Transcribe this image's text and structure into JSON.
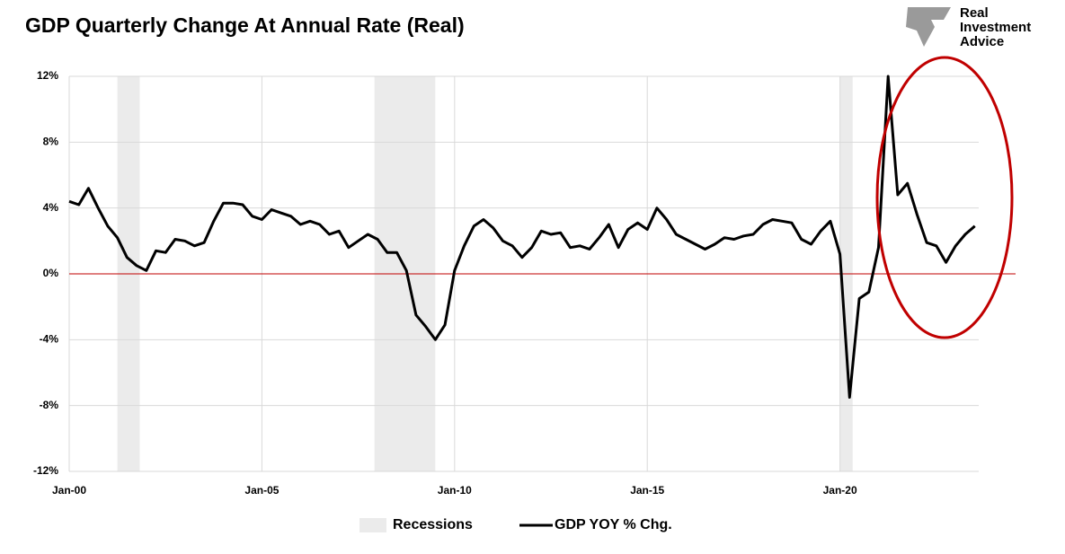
{
  "chart_data": {
    "type": "line",
    "title": "GDP Quarterly Change At Annual Rate (Real)",
    "logo": [
      "Real",
      "Investment",
      "Advice"
    ],
    "x": [
      2000,
      2000.25,
      2000.5,
      2000.75,
      2001,
      2001.25,
      2001.5,
      2001.75,
      2002,
      2002.25,
      2002.5,
      2002.75,
      2003,
      2003.25,
      2003.5,
      2003.75,
      2004,
      2004.25,
      2004.5,
      2004.75,
      2005,
      2005.25,
      2005.5,
      2005.75,
      2006,
      2006.25,
      2006.5,
      2006.75,
      2007,
      2007.25,
      2007.5,
      2007.75,
      2008,
      2008.25,
      2008.5,
      2008.75,
      2009,
      2009.25,
      2009.5,
      2009.75,
      2010,
      2010.25,
      2010.5,
      2010.75,
      2011,
      2011.25,
      2011.5,
      2011.75,
      2012,
      2012.25,
      2012.5,
      2012.75,
      2013,
      2013.25,
      2013.5,
      2013.75,
      2014,
      2014.25,
      2014.5,
      2014.75,
      2015,
      2015.25,
      2015.5,
      2015.75,
      2016,
      2016.25,
      2016.5,
      2016.75,
      2017,
      2017.25,
      2017.5,
      2017.75,
      2018,
      2018.25,
      2018.5,
      2018.75,
      2019,
      2019.25,
      2019.5,
      2019.75,
      2020,
      2020.25,
      2020.5,
      2020.75,
      2021,
      2021.25,
      2021.5,
      2021.75,
      2022,
      2022.25,
      2022.5,
      2022.75,
      2023,
      2023.25,
      2023.5
    ],
    "series": [
      {
        "name": "GDP YOY % Chg.",
        "color": "#000000",
        "values": [
          4.4,
          4.2,
          5.2,
          4.0,
          2.9,
          2.2,
          1.0,
          0.5,
          0.2,
          1.4,
          1.3,
          2.1,
          2.0,
          1.7,
          1.9,
          3.2,
          4.3,
          4.3,
          4.2,
          3.5,
          3.3,
          3.9,
          3.7,
          3.5,
          3.0,
          3.2,
          3.0,
          2.4,
          2.6,
          1.6,
          2.0,
          2.4,
          2.1,
          1.3,
          1.3,
          0.2,
          -2.5,
          -3.2,
          -4.0,
          -3.1,
          0.2,
          1.7,
          2.9,
          3.3,
          2.8,
          2.0,
          1.7,
          1.0,
          1.6,
          2.6,
          2.4,
          2.5,
          1.6,
          1.7,
          1.5,
          2.2,
          3.0,
          1.6,
          2.7,
          3.1,
          2.7,
          4.0,
          3.3,
          2.4,
          2.1,
          1.8,
          1.5,
          1.8,
          2.2,
          2.1,
          2.3,
          2.4,
          3.0,
          3.3,
          3.2,
          3.1,
          2.1,
          1.8,
          2.6,
          3.2,
          1.2,
          -7.5,
          -1.5,
          -1.1,
          1.6,
          12.0,
          4.8,
          5.5,
          3.6,
          1.9,
          1.7,
          0.7,
          1.7,
          2.4,
          2.9
        ]
      }
    ],
    "recessions": {
      "name": "Recessions",
      "color": "#ebebeb",
      "periods": [
        [
          2001.25,
          2001.83
        ],
        [
          2007.92,
          2009.5
        ],
        [
          2020.0,
          2020.33
        ]
      ]
    },
    "zero_line_color": "#c00000",
    "xlim": [
      2000,
      2023.6
    ],
    "xticks": [
      {
        "value": 2000,
        "label": "Jan-00"
      },
      {
        "value": 2005,
        "label": "Jan-05"
      },
      {
        "value": 2010,
        "label": "Jan-10"
      },
      {
        "value": 2015,
        "label": "Jan-15"
      },
      {
        "value": 2020,
        "label": "Jan-20"
      }
    ],
    "ylim": [
      -12,
      12
    ],
    "yticks": [
      {
        "value": -12,
        "label": "-12%"
      },
      {
        "value": -8,
        "label": "-8%"
      },
      {
        "value": -4,
        "label": "-4%"
      },
      {
        "value": 0,
        "label": "0%"
      },
      {
        "value": 4,
        "label": "4%"
      },
      {
        "value": 8,
        "label": "8%"
      },
      {
        "value": 12,
        "label": "12%"
      }
    ],
    "grid": true
  }
}
